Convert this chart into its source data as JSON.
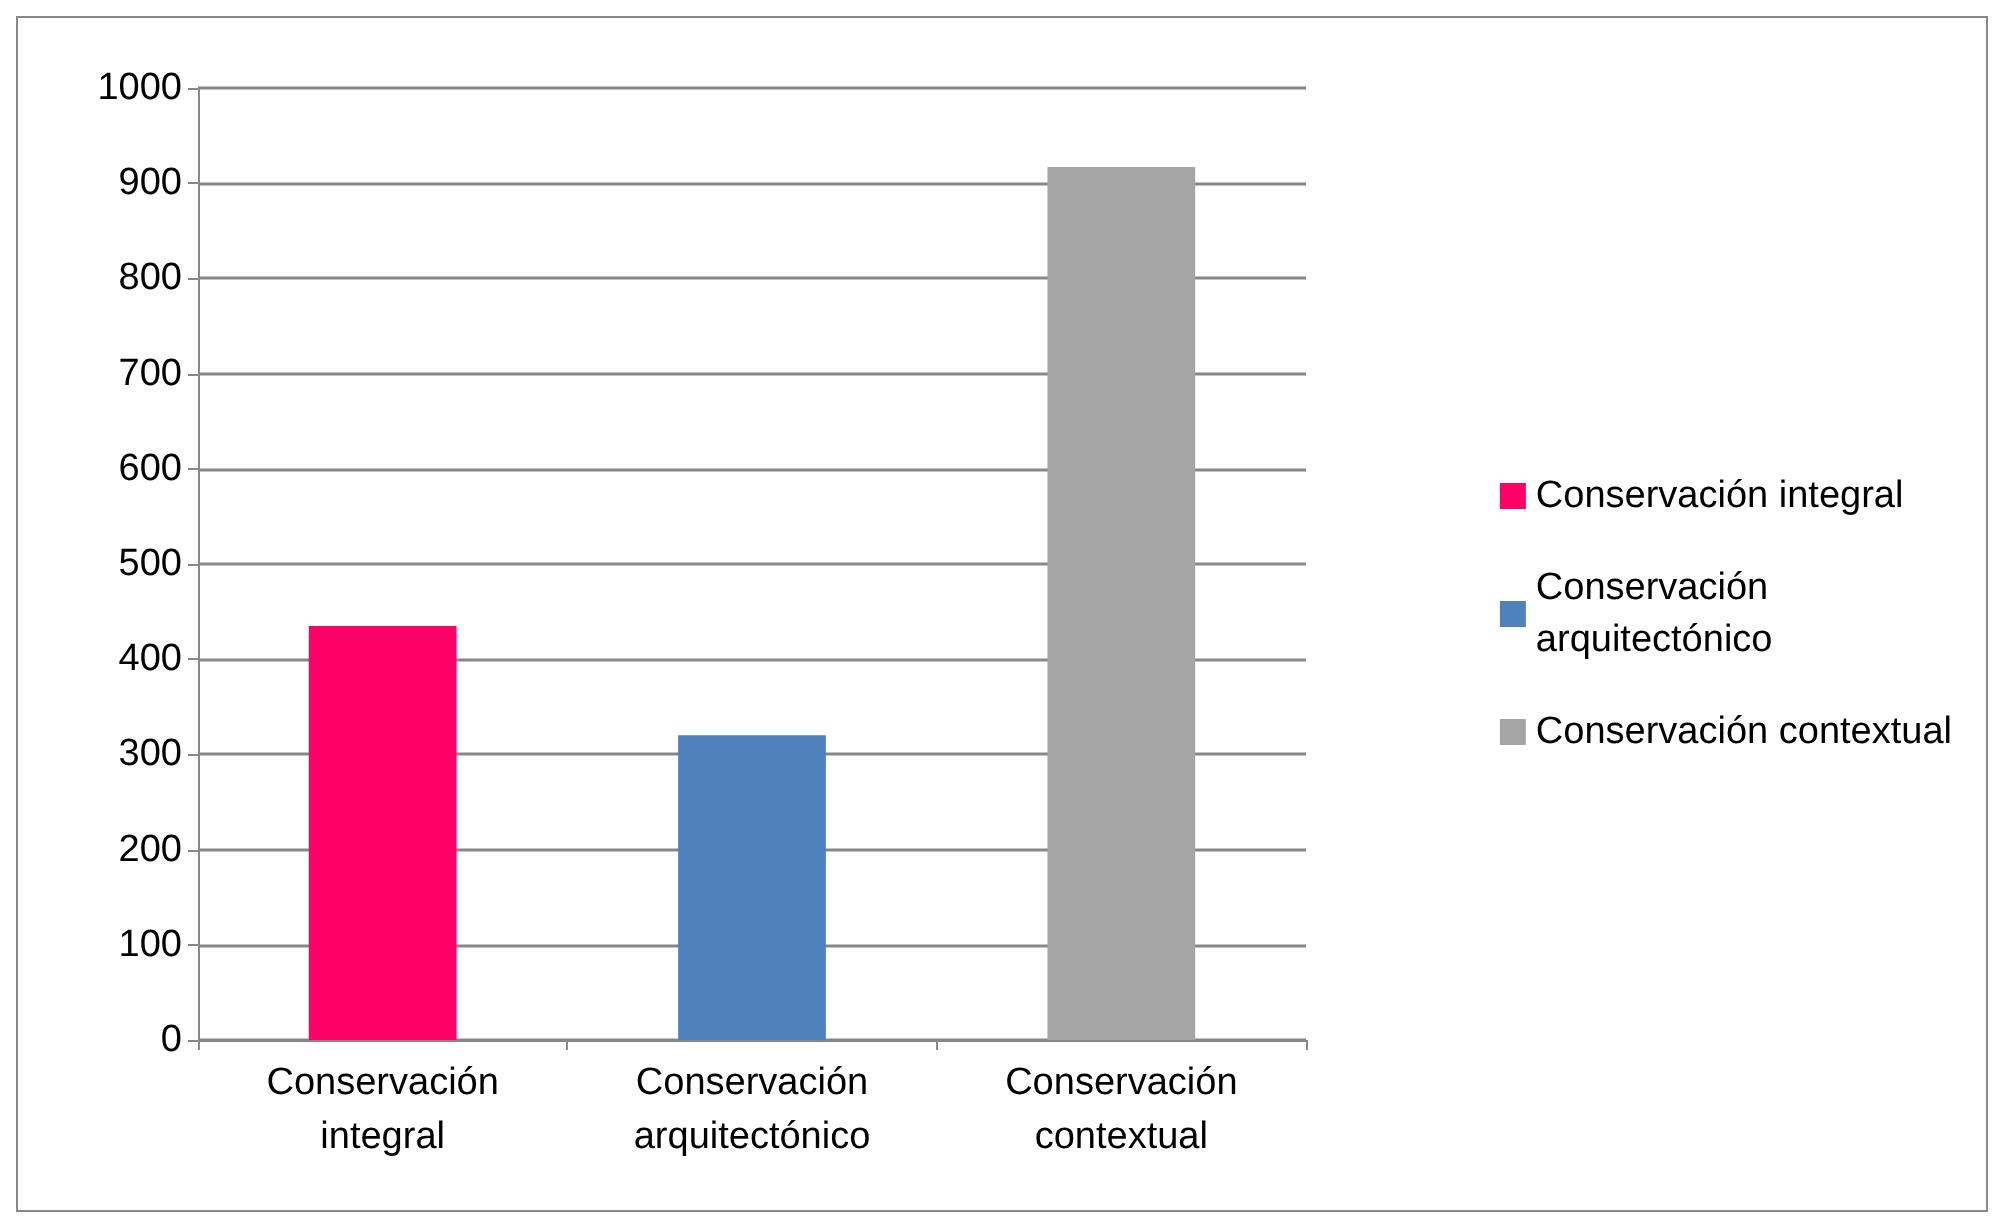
{
  "chart_data": {
    "type": "bar",
    "categories": [
      "Conservación integral",
      "Conservación arquitectónico",
      "Conservación contextual"
    ],
    "series": [
      {
        "name": "Conservación integral",
        "color": "#ff0066",
        "values": [
          435,
          null,
          null
        ]
      },
      {
        "name": "Conservación arquitectónico",
        "color": "#4f81bd",
        "values": [
          null,
          320,
          null
        ]
      },
      {
        "name": "Conservación contextual",
        "color": "#a5a5a5",
        "values": [
          null,
          null,
          917
        ]
      }
    ],
    "stacked": true,
    "ylim": [
      0,
      1000
    ],
    "yticks": [
      0,
      100,
      200,
      300,
      400,
      500,
      600,
      700,
      800,
      900,
      1000
    ],
    "grid": "y",
    "legend": "right"
  }
}
